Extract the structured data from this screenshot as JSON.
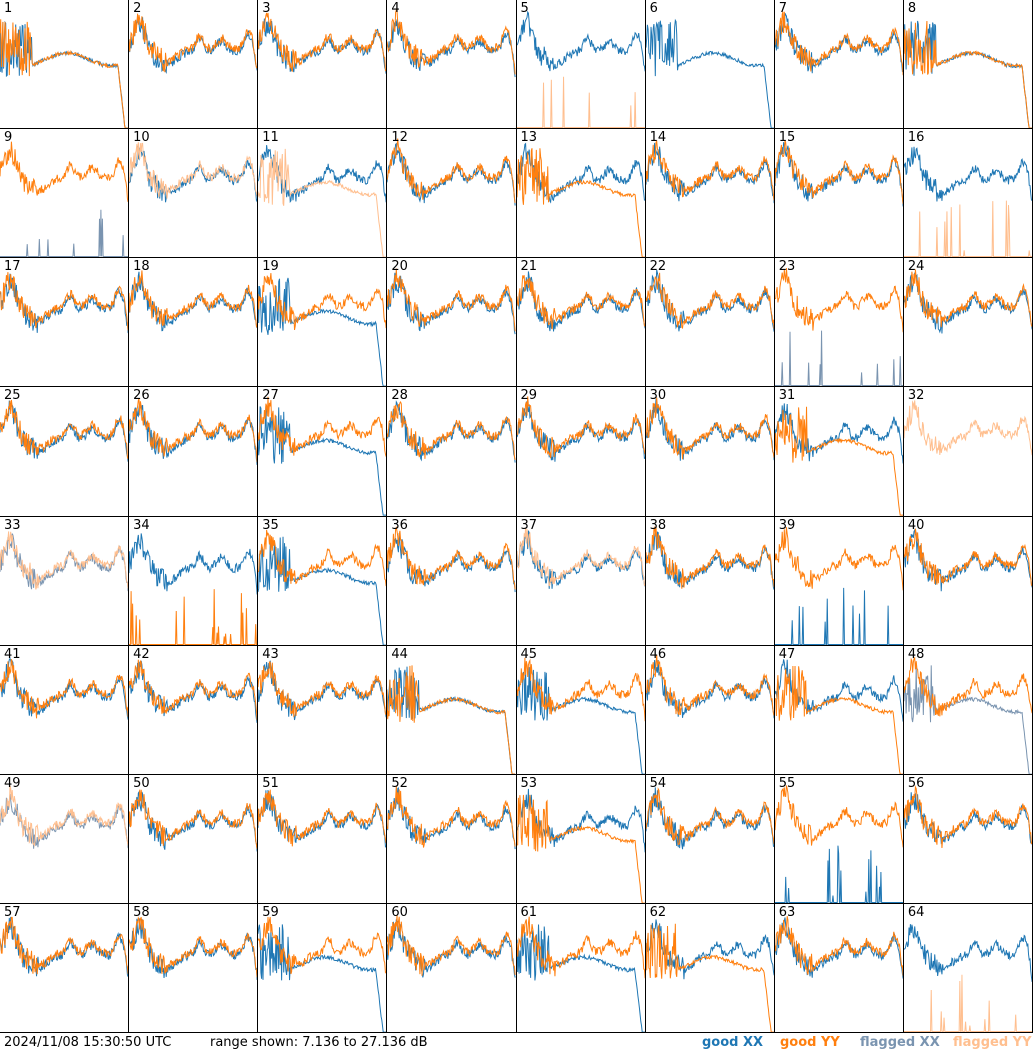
{
  "footer": {
    "timestamp": "2024/11/08 15:30:50 UTC",
    "range": "range shown: 7.136 to 27.136 dB"
  },
  "legend": {
    "good_xx": "good XX",
    "good_yy": "good YY",
    "flagged_xx": "flagged XX",
    "flagged_yy": "flagged YY"
  },
  "colors": {
    "good_xx": "#1f77b4",
    "good_yy": "#ff7f0e",
    "flagged_xx": "#7a94b0",
    "flagged_yy": "#ffbf8f",
    "border": "#000000"
  },
  "chart_data": {
    "type": "line",
    "ylim": [
      7.136,
      27.136
    ],
    "yunit": "dB",
    "panels": [
      {
        "id": "1",
        "xx": "decay",
        "yy": "decay",
        "xx_flag": false,
        "yy_flag": false
      },
      {
        "id": "2",
        "xx": "normal",
        "yy": "normal",
        "xx_flag": false,
        "yy_flag": false
      },
      {
        "id": "3",
        "xx": "normal",
        "yy": "normal",
        "xx_flag": false,
        "yy_flag": false
      },
      {
        "id": "4",
        "xx": "normal",
        "yy": "normal",
        "xx_flag": false,
        "yy_flag": false
      },
      {
        "id": "5",
        "xx": "normal",
        "yy": "spikes",
        "xx_flag": false,
        "yy_flag": true
      },
      {
        "id": "6",
        "xx": "decay",
        "yy": "none",
        "xx_flag": false,
        "yy_flag": false
      },
      {
        "id": "7",
        "xx": "normal",
        "yy": "normal",
        "xx_flag": false,
        "yy_flag": false
      },
      {
        "id": "8",
        "xx": "decay",
        "yy": "decay",
        "xx_flag": false,
        "yy_flag": false
      },
      {
        "id": "9",
        "xx": "spikes",
        "yy": "normal",
        "xx_flag": true,
        "yy_flag": false
      },
      {
        "id": "10",
        "xx": "normal",
        "yy": "normal",
        "xx_flag": false,
        "yy_flag": true
      },
      {
        "id": "11",
        "xx": "normal",
        "yy": "decay",
        "xx_flag": false,
        "yy_flag": true
      },
      {
        "id": "12",
        "xx": "normal",
        "yy": "normal",
        "xx_flag": false,
        "yy_flag": false
      },
      {
        "id": "13",
        "xx": "normal",
        "yy": "decay",
        "xx_flag": false,
        "yy_flag": false
      },
      {
        "id": "14",
        "xx": "normal",
        "yy": "normal",
        "xx_flag": false,
        "yy_flag": false
      },
      {
        "id": "15",
        "xx": "normal",
        "yy": "normal",
        "xx_flag": false,
        "yy_flag": false
      },
      {
        "id": "16",
        "xx": "normal",
        "yy": "spikes",
        "xx_flag": false,
        "yy_flag": true
      },
      {
        "id": "17",
        "xx": "normal",
        "yy": "normal",
        "xx_flag": false,
        "yy_flag": false
      },
      {
        "id": "18",
        "xx": "normal",
        "yy": "normal",
        "xx_flag": false,
        "yy_flag": false
      },
      {
        "id": "19",
        "xx": "decay",
        "yy": "normal",
        "xx_flag": false,
        "yy_flag": false
      },
      {
        "id": "20",
        "xx": "normal",
        "yy": "normal",
        "xx_flag": false,
        "yy_flag": false
      },
      {
        "id": "21",
        "xx": "normal",
        "yy": "normal",
        "xx_flag": false,
        "yy_flag": false
      },
      {
        "id": "22",
        "xx": "normal",
        "yy": "normal",
        "xx_flag": false,
        "yy_flag": false
      },
      {
        "id": "23",
        "xx": "spikes",
        "yy": "normal",
        "xx_flag": true,
        "yy_flag": false
      },
      {
        "id": "24",
        "xx": "normal",
        "yy": "normal",
        "xx_flag": false,
        "yy_flag": false
      },
      {
        "id": "25",
        "xx": "normal",
        "yy": "normal",
        "xx_flag": false,
        "yy_flag": false
      },
      {
        "id": "26",
        "xx": "normal",
        "yy": "normal",
        "xx_flag": false,
        "yy_flag": false
      },
      {
        "id": "27",
        "xx": "decay",
        "yy": "normal",
        "xx_flag": false,
        "yy_flag": false
      },
      {
        "id": "28",
        "xx": "normal",
        "yy": "normal",
        "xx_flag": false,
        "yy_flag": false
      },
      {
        "id": "29",
        "xx": "normal",
        "yy": "normal",
        "xx_flag": false,
        "yy_flag": false
      },
      {
        "id": "30",
        "xx": "normal",
        "yy": "normal",
        "xx_flag": false,
        "yy_flag": false
      },
      {
        "id": "31",
        "xx": "normal",
        "yy": "decay",
        "xx_flag": false,
        "yy_flag": false
      },
      {
        "id": "32",
        "xx": "none",
        "yy": "normal",
        "xx_flag": false,
        "yy_flag": true
      },
      {
        "id": "33",
        "xx": "normal",
        "yy": "normal",
        "xx_flag": true,
        "yy_flag": true
      },
      {
        "id": "34",
        "xx": "normal",
        "yy": "spikes",
        "xx_flag": false,
        "yy_flag": false
      },
      {
        "id": "35",
        "xx": "decay",
        "yy": "normal",
        "xx_flag": false,
        "yy_flag": false
      },
      {
        "id": "36",
        "xx": "normal",
        "yy": "normal",
        "xx_flag": false,
        "yy_flag": false
      },
      {
        "id": "37",
        "xx": "normal",
        "yy": "normal",
        "xx_flag": false,
        "yy_flag": true
      },
      {
        "id": "38",
        "xx": "normal",
        "yy": "normal",
        "xx_flag": false,
        "yy_flag": false
      },
      {
        "id": "39",
        "xx": "spikes",
        "yy": "normal",
        "xx_flag": false,
        "yy_flag": false
      },
      {
        "id": "40",
        "xx": "normal",
        "yy": "normal",
        "xx_flag": false,
        "yy_flag": false
      },
      {
        "id": "41",
        "xx": "normal",
        "yy": "normal",
        "xx_flag": false,
        "yy_flag": false
      },
      {
        "id": "42",
        "xx": "normal",
        "yy": "normal",
        "xx_flag": false,
        "yy_flag": false
      },
      {
        "id": "43",
        "xx": "normal",
        "yy": "normal",
        "xx_flag": false,
        "yy_flag": false
      },
      {
        "id": "44",
        "xx": "decay",
        "yy": "decay",
        "xx_flag": false,
        "yy_flag": false
      },
      {
        "id": "45",
        "xx": "decay",
        "yy": "normal",
        "xx_flag": false,
        "yy_flag": false
      },
      {
        "id": "46",
        "xx": "normal",
        "yy": "normal",
        "xx_flag": false,
        "yy_flag": false
      },
      {
        "id": "47",
        "xx": "normal",
        "yy": "decay",
        "xx_flag": false,
        "yy_flag": false
      },
      {
        "id": "48",
        "xx": "decay",
        "yy": "normal",
        "xx_flag": true,
        "yy_flag": false
      },
      {
        "id": "49",
        "xx": "normal",
        "yy": "normal",
        "xx_flag": true,
        "yy_flag": true
      },
      {
        "id": "50",
        "xx": "normal",
        "yy": "normal",
        "xx_flag": false,
        "yy_flag": false
      },
      {
        "id": "51",
        "xx": "normal",
        "yy": "normal",
        "xx_flag": false,
        "yy_flag": false
      },
      {
        "id": "52",
        "xx": "normal",
        "yy": "normal",
        "xx_flag": false,
        "yy_flag": false
      },
      {
        "id": "53",
        "xx": "normal",
        "yy": "decay",
        "xx_flag": false,
        "yy_flag": false
      },
      {
        "id": "54",
        "xx": "normal",
        "yy": "normal",
        "xx_flag": false,
        "yy_flag": false
      },
      {
        "id": "55",
        "xx": "spikes",
        "yy": "normal",
        "xx_flag": false,
        "yy_flag": false
      },
      {
        "id": "56",
        "xx": "normal",
        "yy": "normal",
        "xx_flag": false,
        "yy_flag": false
      },
      {
        "id": "57",
        "xx": "normal",
        "yy": "normal",
        "xx_flag": false,
        "yy_flag": false
      },
      {
        "id": "58",
        "xx": "normal",
        "yy": "normal",
        "xx_flag": false,
        "yy_flag": false
      },
      {
        "id": "59",
        "xx": "decay",
        "yy": "normal",
        "xx_flag": false,
        "yy_flag": false
      },
      {
        "id": "60",
        "xx": "normal",
        "yy": "normal",
        "xx_flag": false,
        "yy_flag": false
      },
      {
        "id": "61",
        "xx": "decay",
        "yy": "normal",
        "xx_flag": false,
        "yy_flag": false
      },
      {
        "id": "62",
        "xx": "normal",
        "yy": "decay",
        "xx_flag": false,
        "yy_flag": false
      },
      {
        "id": "63",
        "xx": "normal",
        "yy": "normal",
        "xx_flag": false,
        "yy_flag": false
      },
      {
        "id": "64",
        "xx": "normal",
        "yy": "spikes",
        "xx_flag": false,
        "yy_flag": true
      }
    ]
  }
}
